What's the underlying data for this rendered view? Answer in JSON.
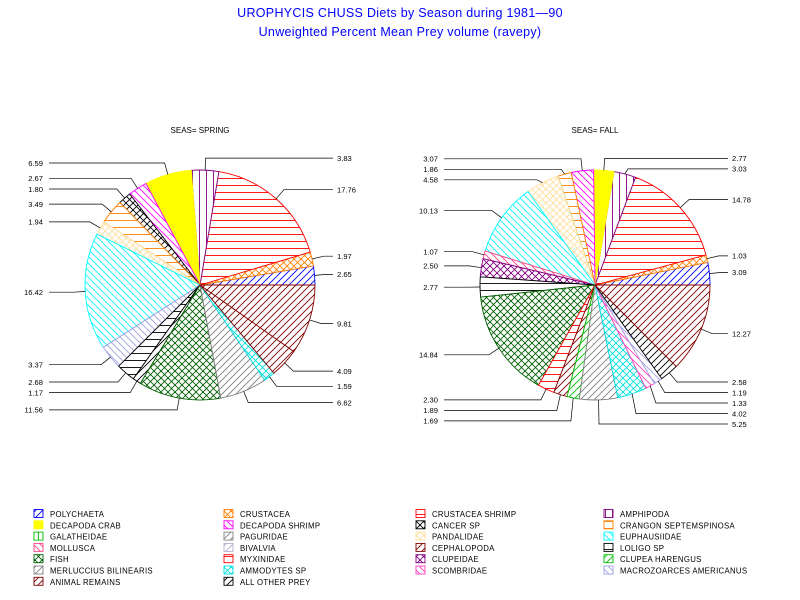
{
  "chart_data": {
    "type": "pie",
    "title": "UROPHYCIS CHUSS Diets by Season during 1981—90",
    "subtitle": "Unweighted Percent Mean Prey volume (ravepy)",
    "legend": {
      "placement": "bottom",
      "entries": [
        {
          "name": "POLYCHAETA",
          "color": "#0000ff",
          "pattern": "fwd"
        },
        {
          "name": "CRUSTACEA",
          "color": "#ff8000",
          "pattern": "cross"
        },
        {
          "name": "CRUSTACEA SHRIMP",
          "color": "#ff0000",
          "pattern": "horiz"
        },
        {
          "name": "AMPHIPODA",
          "color": "#800080",
          "pattern": "vert"
        },
        {
          "name": "DECAPODA CRAB",
          "color": "#ffff00",
          "pattern": "solid"
        },
        {
          "name": "DECAPODA SHRIMP",
          "color": "#ff00ff",
          "pattern": "back"
        },
        {
          "name": "CANCER SP",
          "color": "#000000",
          "pattern": "cross"
        },
        {
          "name": "CRANGON SEPTEMSPINOSA",
          "color": "#ff8000",
          "pattern": "horiz"
        },
        {
          "name": "GALATHEIDAE",
          "color": "#00c000",
          "pattern": "vert"
        },
        {
          "name": "PAGURIDAE",
          "color": "#808080",
          "pattern": "fwd"
        },
        {
          "name": "PANDALIDAE",
          "color": "#ffe0a0",
          "pattern": "cross"
        },
        {
          "name": "EUPHAUSIIDAE",
          "color": "#00ffff",
          "pattern": "back"
        },
        {
          "name": "MOLLUSCA",
          "color": "#ff4080",
          "pattern": "back"
        },
        {
          "name": "BIVALVIA",
          "color": "#b0b0d0",
          "pattern": "fwd"
        },
        {
          "name": "CEPHALOPODA",
          "color": "#800000",
          "pattern": "fwd"
        },
        {
          "name": "LOLIGO SP",
          "color": "#000000",
          "pattern": "horiz"
        },
        {
          "name": "FISH",
          "color": "#006000",
          "pattern": "cross"
        },
        {
          "name": "MYXINIDAE",
          "color": "#ff0000",
          "pattern": "horiz"
        },
        {
          "name": "CLUPEIDAE",
          "color": "#800080",
          "pattern": "cross"
        },
        {
          "name": "CLUPEA HARENGUS",
          "color": "#00c000",
          "pattern": "fwd"
        },
        {
          "name": "MERLUCCIUS BILINEARIS",
          "color": "#808080",
          "pattern": "fwd"
        },
        {
          "name": "AMMODYTES SP",
          "color": "#00e0e0",
          "pattern": "cross"
        },
        {
          "name": "SCOMBRIDAE",
          "color": "#ff40c0",
          "pattern": "back"
        },
        {
          "name": "MACROZOARCES AMERICANUS",
          "color": "#a0a0e0",
          "pattern": "back"
        },
        {
          "name": "ANIMAL REMAINS",
          "color": "#800000",
          "pattern": "fwd"
        },
        {
          "name": "ALL OTHER PREY",
          "color": "#000000",
          "pattern": "fwd"
        }
      ]
    },
    "pies": [
      {
        "label": "SEAS= SPRING",
        "slices": [
          {
            "category": "POLYCHAETA",
            "value": 2.65,
            "label": "2.65"
          },
          {
            "category": "CRUSTACEA",
            "value": 1.97,
            "label": "1.97"
          },
          {
            "category": "CRUSTACEA SHRIMP",
            "value": 17.76,
            "label": "17.76"
          },
          {
            "category": "AMPHIPODA",
            "value": 3.83,
            "label": "3.83"
          },
          {
            "category": "DECAPODA CRAB",
            "value": 6.59,
            "label": "6.59"
          },
          {
            "category": "DECAPODA SHRIMP",
            "value": 2.67,
            "label": "2.67"
          },
          {
            "category": "CANCER SP",
            "value": 1.8,
            "label": "1.80"
          },
          {
            "category": "CRANGON SEPTEMSPINOSA",
            "value": 3.49,
            "label": "3.49"
          },
          {
            "category": "PANDALIDAE",
            "value": 1.94,
            "label": "1.94"
          },
          {
            "category": "EUPHAUSIIDAE",
            "value": 16.42,
            "label": "16.42"
          },
          {
            "category": "MACROZOARCES AMERICANUS",
            "value": 3.37,
            "label": "3.37"
          },
          {
            "category": "LOLIGO SP",
            "value": 2.68,
            "label": "2.68"
          },
          {
            "category": "ALL OTHER PREY",
            "value": 1.17,
            "label": "1.17"
          },
          {
            "category": "FISH",
            "value": 11.56,
            "label": "11.56"
          },
          {
            "category": "MERLUCCIUS BILINEARIS",
            "value": 6.62,
            "label": "6.62"
          },
          {
            "category": "AMMODYTES SP",
            "value": 1.59,
            "label": "1.59"
          },
          {
            "category": "CEPHALOPODA",
            "value": 4.09,
            "label": "4.09"
          },
          {
            "category": "ANIMAL REMAINS",
            "value": 9.81,
            "label": "9.81"
          }
        ]
      },
      {
        "label": "SEAS= FALL",
        "slices": [
          {
            "category": "POLYCHAETA",
            "value": 3.09,
            "label": "3.09"
          },
          {
            "category": "CRUSTACEA",
            "value": 1.03,
            "label": "1.03"
          },
          {
            "category": "CRUSTACEA SHRIMP",
            "value": 14.78,
            "label": "14.78"
          },
          {
            "category": "AMPHIPODA",
            "value": 3.03,
            "label": "3.03"
          },
          {
            "category": "DECAPODA CRAB",
            "value": 2.77,
            "label": "2.77"
          },
          {
            "category": "DECAPODA SHRIMP",
            "value": 3.07,
            "label": "3.07"
          },
          {
            "category": "CRANGON SEPTEMSPINOSA",
            "value": 1.86,
            "label": "1.86"
          },
          {
            "category": "GALATHEIDAE",
            "value": 0.0,
            "label": ""
          },
          {
            "category": "PANDALIDAE",
            "value": 4.58,
            "label": "4.58"
          },
          {
            "category": "EUPHAUSIIDAE",
            "value": 10.13,
            "label": "10.13"
          },
          {
            "category": "MOLLUSCA",
            "value": 1.07,
            "label": "1.07"
          },
          {
            "category": "CLUPEIDAE",
            "value": 2.5,
            "label": "2.50"
          },
          {
            "category": "LOLIGO SP",
            "value": 2.77,
            "label": "2.77"
          },
          {
            "category": "FISH",
            "value": 14.84,
            "label": "14.84"
          },
          {
            "category": "MYXINIDAE",
            "value": 2.3,
            "label": "2.30"
          },
          {
            "category": "CEPHALOPODA",
            "value": 1.89,
            "label": "1.89"
          },
          {
            "category": "CLUPEA HARENGUS",
            "value": 1.69,
            "label": "1.69"
          },
          {
            "category": "MERLUCCIUS BILINEARIS",
            "value": 5.25,
            "label": "5.25"
          },
          {
            "category": "AMMODYTES SP",
            "value": 4.02,
            "label": "4.02"
          },
          {
            "category": "SCOMBRIDAE",
            "value": 1.33,
            "label": "1.33"
          },
          {
            "category": "MACROZOARCES AMERICANUS",
            "value": 1.19,
            "label": "1.19"
          },
          {
            "category": "ALL OTHER PREY",
            "value": 2.58,
            "label": "2.58"
          },
          {
            "category": "ANIMAL REMAINS",
            "value": 12.27,
            "label": "12.27"
          }
        ]
      }
    ]
  }
}
